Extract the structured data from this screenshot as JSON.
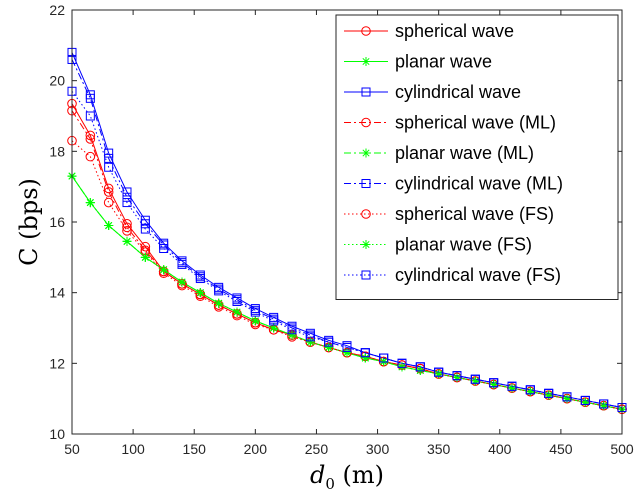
{
  "chart_data": {
    "type": "line",
    "title": "",
    "xlabel_main": "d",
    "xlabel_sub": "0",
    "xlabel_unit": " (m)",
    "ylabel": "C (bps)",
    "xlim": [
      50,
      500
    ],
    "ylim": [
      10,
      22
    ],
    "xticks": [
      50,
      100,
      150,
      200,
      250,
      300,
      350,
      400,
      450,
      500
    ],
    "yticks": [
      10,
      12,
      14,
      16,
      18,
      20,
      22
    ],
    "legend_position": "top-right",
    "x": [
      50,
      65,
      80,
      95,
      110,
      125,
      140,
      155,
      170,
      185,
      200,
      215,
      230,
      245,
      260,
      275,
      290,
      305,
      320,
      335,
      350,
      365,
      380,
      395,
      410,
      425,
      440,
      455,
      470,
      485,
      500
    ],
    "series": [
      {
        "name": "spherical wave",
        "color": "#ff0000",
        "marker": "circle",
        "dash": "solid",
        "values": [
          19.35,
          18.45,
          16.95,
          15.95,
          15.3,
          14.6,
          14.25,
          13.95,
          13.65,
          13.4,
          13.15,
          12.95,
          12.8,
          12.6,
          12.45,
          12.3,
          12.2,
          12.05,
          11.95,
          11.85,
          11.7,
          11.6,
          11.5,
          11.4,
          11.3,
          11.2,
          11.1,
          11.0,
          10.9,
          10.8,
          10.7
        ]
      },
      {
        "name": "planar wave",
        "color": "#00ff00",
        "marker": "star",
        "dash": "solid",
        "values": [
          17.3,
          16.55,
          15.9,
          15.45,
          15.0,
          14.65,
          14.3,
          14.0,
          13.7,
          13.45,
          13.2,
          13.0,
          12.8,
          12.6,
          12.45,
          12.3,
          12.15,
          12.05,
          11.9,
          11.8,
          11.7,
          11.6,
          11.5,
          11.4,
          11.3,
          11.2,
          11.1,
          11.0,
          10.9,
          10.8,
          10.7
        ]
      },
      {
        "name": "cylindrical wave",
        "color": "#0000ff",
        "marker": "square",
        "dash": "solid",
        "values": [
          20.8,
          19.6,
          17.95,
          16.85,
          16.05,
          15.4,
          14.9,
          14.5,
          14.15,
          13.85,
          13.55,
          13.3,
          13.05,
          12.85,
          12.65,
          12.5,
          12.3,
          12.15,
          12.0,
          11.9,
          11.75,
          11.65,
          11.55,
          11.45,
          11.35,
          11.25,
          11.15,
          11.05,
          10.95,
          10.85,
          10.75
        ]
      },
      {
        "name": "spherical wave (ML)",
        "color": "#ff0000",
        "marker": "circle",
        "dash": "dashdot",
        "values": [
          19.15,
          18.35,
          16.85,
          15.85,
          15.2,
          14.6,
          14.25,
          13.95,
          13.65,
          13.4,
          13.15,
          12.95,
          12.8,
          12.6,
          12.45,
          12.3,
          12.2,
          12.05,
          11.95,
          11.85,
          11.7,
          11.6,
          11.5,
          11.4,
          11.3,
          11.2,
          11.1,
          11.0,
          10.9,
          10.8,
          10.7
        ]
      },
      {
        "name": "planar wave (ML)",
        "color": "#00ff00",
        "marker": "star",
        "dash": "dashdot",
        "values": [
          17.3,
          16.55,
          15.9,
          15.45,
          15.0,
          14.65,
          14.3,
          14.0,
          13.7,
          13.45,
          13.2,
          13.0,
          12.8,
          12.6,
          12.45,
          12.3,
          12.15,
          12.05,
          11.9,
          11.8,
          11.7,
          11.6,
          11.5,
          11.4,
          11.3,
          11.2,
          11.1,
          11.0,
          10.9,
          10.8,
          10.7
        ]
      },
      {
        "name": "cylindrical wave (ML)",
        "color": "#0000ff",
        "marker": "square",
        "dash": "dashdot",
        "values": [
          20.6,
          19.5,
          17.8,
          16.7,
          15.95,
          15.35,
          14.85,
          14.45,
          14.1,
          13.8,
          13.5,
          13.25,
          13.0,
          12.8,
          12.6,
          12.45,
          12.3,
          12.15,
          12.0,
          11.9,
          11.75,
          11.65,
          11.55,
          11.45,
          11.35,
          11.25,
          11.15,
          11.05,
          10.95,
          10.85,
          10.75
        ]
      },
      {
        "name": "spherical wave (FS)",
        "color": "#ff0000",
        "marker": "circle",
        "dash": "dotted",
        "values": [
          18.3,
          17.85,
          16.55,
          15.75,
          15.15,
          14.55,
          14.2,
          13.9,
          13.6,
          13.35,
          13.1,
          12.95,
          12.75,
          12.6,
          12.45,
          12.3,
          12.2,
          12.05,
          11.95,
          11.85,
          11.7,
          11.6,
          11.5,
          11.4,
          11.3,
          11.2,
          11.1,
          11.0,
          10.9,
          10.8,
          10.7
        ]
      },
      {
        "name": "planar wave (FS)",
        "color": "#00ff00",
        "marker": "star",
        "dash": "dotted",
        "values": [
          17.3,
          16.55,
          15.9,
          15.45,
          15.0,
          14.65,
          14.3,
          14.0,
          13.7,
          13.45,
          13.2,
          13.0,
          12.8,
          12.6,
          12.45,
          12.3,
          12.15,
          12.05,
          11.9,
          11.8,
          11.7,
          11.6,
          11.5,
          11.4,
          11.3,
          11.2,
          11.1,
          11.0,
          10.9,
          10.8,
          10.7
        ]
      },
      {
        "name": "cylindrical wave (FS)",
        "color": "#0000ff",
        "marker": "square",
        "dash": "dotted",
        "values": [
          19.7,
          19.0,
          17.55,
          16.55,
          15.8,
          15.25,
          14.8,
          14.4,
          14.05,
          13.75,
          13.45,
          13.2,
          12.95,
          12.75,
          12.6,
          12.45,
          12.3,
          12.15,
          12.0,
          11.9,
          11.75,
          11.65,
          11.55,
          11.45,
          11.35,
          11.25,
          11.15,
          11.05,
          10.95,
          10.85,
          10.75
        ]
      }
    ]
  }
}
